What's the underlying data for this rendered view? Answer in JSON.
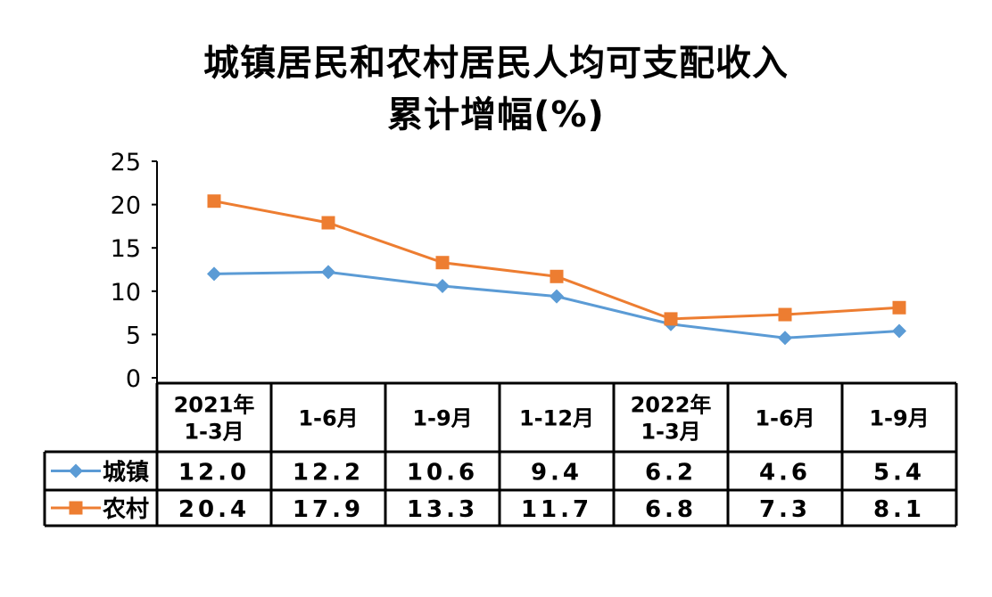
{
  "chart_data": {
    "type": "line",
    "title_line1": "城镇居民和农村居民人均可支配收入",
    "title_line2": "累计增幅(%)",
    "categories": [
      [
        "2021年",
        "1-3月"
      ],
      [
        "1-6月"
      ],
      [
        "1-9月"
      ],
      [
        "1-12月"
      ],
      [
        "2022年",
        "1-3月"
      ],
      [
        "1-6月"
      ],
      [
        "1-9月"
      ]
    ],
    "yticks": [
      "0",
      "5",
      "10",
      "15",
      "20",
      "25"
    ],
    "ylim": [
      0,
      25
    ],
    "series": [
      {
        "name": "城镇",
        "color": "#5B9BD5",
        "marker": "diamond",
        "values": [
          12.0,
          12.2,
          10.6,
          9.4,
          6.2,
          4.6,
          5.4
        ],
        "labels": [
          "12.0",
          "12.2",
          "10.6",
          "9.4",
          "6.2",
          "4.6",
          "5.4"
        ]
      },
      {
        "name": "农村",
        "color": "#ED7D31",
        "marker": "square",
        "values": [
          20.4,
          17.9,
          13.3,
          11.7,
          6.8,
          7.3,
          8.1
        ],
        "labels": [
          "20.4",
          "17.9",
          "13.3",
          "11.7",
          "6.8",
          "7.3",
          "8.1"
        ]
      }
    ],
    "grid": false,
    "legend": "data-table-left"
  }
}
